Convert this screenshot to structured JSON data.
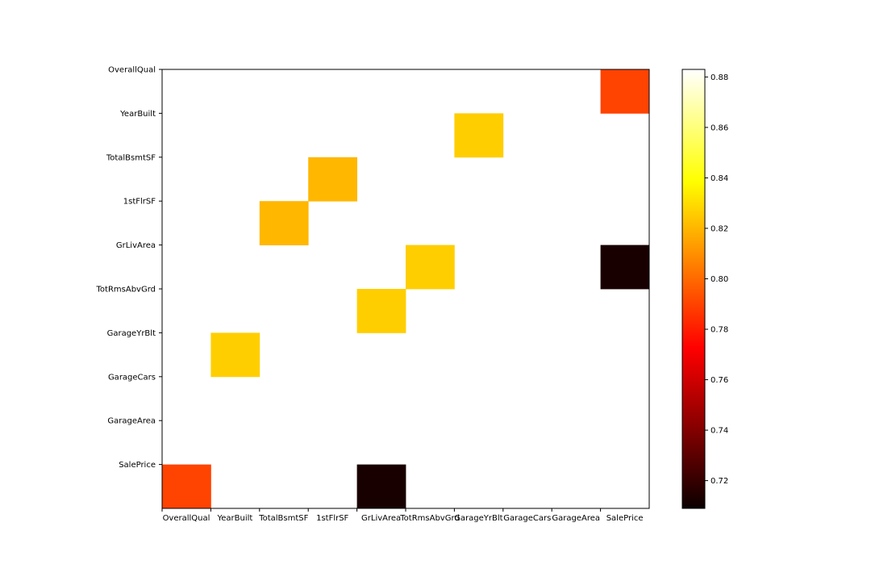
{
  "chart_data": {
    "type": "heatmap",
    "title": "",
    "xlabel": "",
    "ylabel": "",
    "row_labels": [
      "OverallQual",
      "YearBuilt",
      "TotalBsmtSF",
      "1stFlrSF",
      "GrLivArea",
      "TotRmsAbvGrd",
      "GarageYrBlt",
      "GarageCars",
      "GarageArea",
      "SalePrice"
    ],
    "col_labels": [
      "OverallQual",
      "YearBuilt",
      "TotalBsmtSF",
      "1stFlrSF",
      "GrLivArea",
      "TotRmsAbvGrd",
      "GarageYrBlt",
      "GarageCars",
      "GarageArea",
      "SalePrice"
    ],
    "cells": [
      {
        "row": "OverallQual",
        "col": "SalePrice",
        "value": 0.79
      },
      {
        "row": "YearBuilt",
        "col": "GarageYrBlt",
        "value": 0.826
      },
      {
        "row": "TotalBsmtSF",
        "col": "1stFlrSF",
        "value": 0.82
      },
      {
        "row": "1stFlrSF",
        "col": "TotalBsmtSF",
        "value": 0.82
      },
      {
        "row": "GrLivArea",
        "col": "TotRmsAbvGrd",
        "value": 0.826
      },
      {
        "row": "GrLivArea",
        "col": "SalePrice",
        "value": 0.709
      },
      {
        "row": "TotRmsAbvGrd",
        "col": "GrLivArea",
        "value": 0.826
      },
      {
        "row": "GarageYrBlt",
        "col": "YearBuilt",
        "value": 0.826
      },
      {
        "row": "SalePrice",
        "col": "OverallQual",
        "value": 0.79
      },
      {
        "row": "SalePrice",
        "col": "GrLivArea",
        "value": 0.709
      }
    ],
    "colorbar": {
      "colormap": "hot",
      "vmin": 0.709,
      "vmax": 0.883,
      "ticks": [
        0.72,
        0.74,
        0.76,
        0.78,
        0.8,
        0.82,
        0.84,
        0.86,
        0.88
      ],
      "tick_labels": [
        "0.72",
        "0.74",
        "0.76",
        "0.78",
        "0.80",
        "0.82",
        "0.84",
        "0.86",
        "0.88"
      ]
    },
    "grid": false,
    "legend": "colorbar-right"
  }
}
